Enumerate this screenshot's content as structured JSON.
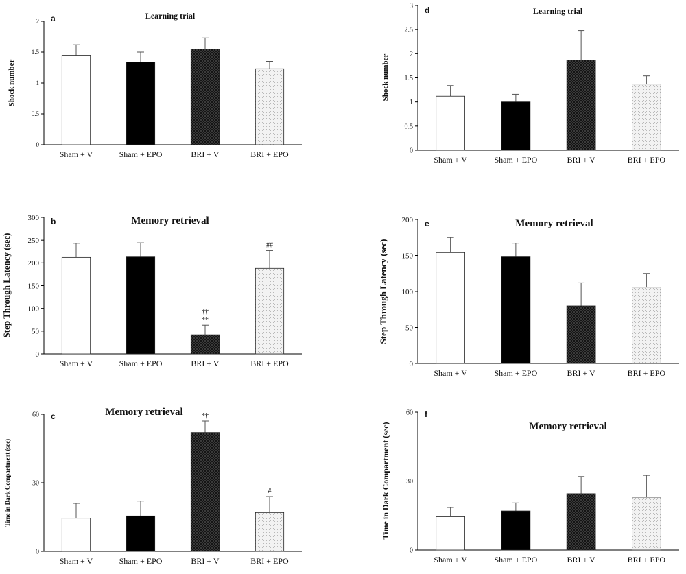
{
  "chart_data": [
    {
      "panel": "a",
      "type": "bar",
      "title": "Learning trial",
      "ylabel": "Shock number",
      "categories": [
        "Sham + V",
        "Sham + EPO",
        "BRI + V",
        "BRI + EPO"
      ],
      "values": [
        1.45,
        1.34,
        1.55,
        1.23
      ],
      "errors": [
        0.17,
        0.16,
        0.18,
        0.12
      ],
      "annotations": [
        "",
        "",
        "",
        ""
      ],
      "ylim": [
        0,
        2
      ],
      "yticks": [
        "0",
        "0.5",
        "1",
        "1.5",
        "2"
      ],
      "grid": false
    },
    {
      "panel": "b",
      "type": "bar",
      "title": "Memory retrieval",
      "ylabel": "Step Through Latency (sec)",
      "categories": [
        "Sham + V",
        "Sham + EPO",
        "BRI + V",
        "BRI + EPO"
      ],
      "values": [
        212,
        213,
        42,
        188
      ],
      "errors": [
        31,
        31,
        21,
        39
      ],
      "annotations": [
        "",
        "",
        "**",
        "##"
      ],
      "annotations_top": [
        "",
        "",
        "††",
        ""
      ],
      "ylim": [
        0,
        300
      ],
      "yticks": [
        "0",
        "50",
        "100",
        "150",
        "200",
        "250",
        "300"
      ],
      "grid": false
    },
    {
      "panel": "c",
      "type": "bar",
      "title": "Memory retrieval",
      "ylabel": "Time in Dark Compartment (sec)",
      "categories": [
        "Sham + V",
        "Sham + EPO",
        "BRI + V",
        "BRI + EPO"
      ],
      "values": [
        14.5,
        15.5,
        52,
        17
      ],
      "errors": [
        6.5,
        6.5,
        5,
        7
      ],
      "annotations": [
        "",
        "",
        "*†",
        "#"
      ],
      "ylim": [
        0,
        60
      ],
      "yticks": [
        "0",
        "30",
        "60"
      ],
      "grid": false
    },
    {
      "panel": "d",
      "type": "bar",
      "title": "Learning trial",
      "ylabel": "Shock number",
      "categories": [
        "Sham + V",
        "Sham + EPO",
        "BRI + V",
        "BRI + EPO"
      ],
      "values": [
        1.12,
        1.0,
        1.87,
        1.37
      ],
      "errors": [
        0.22,
        0.16,
        0.61,
        0.17
      ],
      "annotations": [
        "",
        "",
        "",
        ""
      ],
      "ylim": [
        0,
        3
      ],
      "yticks": [
        "0",
        "0.5",
        "1",
        "1.5",
        "2",
        "2.5",
        "3"
      ],
      "grid": false
    },
    {
      "panel": "e",
      "type": "bar",
      "title": "Memory retrieval",
      "ylabel": "Step Through Latency (sec)",
      "categories": [
        "Sham + V",
        "Sham + EPO",
        "BRI + V",
        "BRI + EPO"
      ],
      "values": [
        154,
        148,
        80,
        106
      ],
      "errors": [
        21,
        19,
        32,
        19
      ],
      "annotations": [
        "",
        "",
        "",
        ""
      ],
      "ylim": [
        0,
        200
      ],
      "yticks": [
        "0",
        "50",
        "100",
        "150",
        "200"
      ],
      "grid": false
    },
    {
      "panel": "f",
      "type": "bar",
      "title": "Memory retrieval",
      "ylabel": "Time in Dark Compartment (sec)",
      "categories": [
        "Sham + V",
        "Sham + EPO",
        "BRI + V",
        "BRI + EPO"
      ],
      "values": [
        14.5,
        17,
        24.5,
        23
      ],
      "errors": [
        4,
        3.5,
        7.5,
        9.5
      ],
      "annotations": [
        "",
        "",
        "",
        ""
      ],
      "ylim": [
        0,
        60
      ],
      "yticks": [
        "0",
        "30",
        "60"
      ],
      "grid": false
    }
  ],
  "fills": [
    "white",
    "black",
    "dark-checker",
    "light-dots"
  ]
}
